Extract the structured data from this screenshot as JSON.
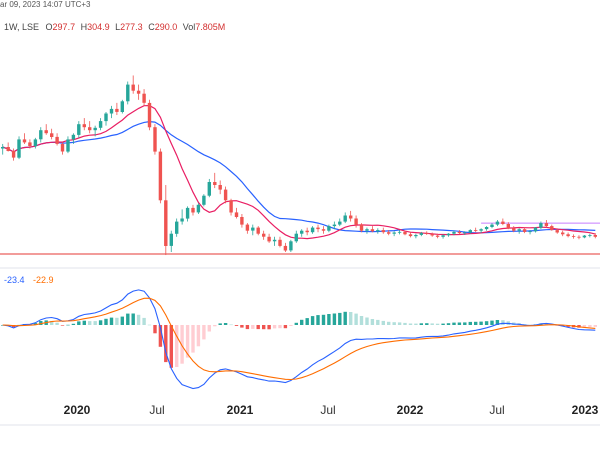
{
  "header": {
    "datetime_fragment": "ar 09, 2023 14:07 UTC+3",
    "interval_exchange": "1W, LSE",
    "ohlc": {
      "open_label": "O",
      "open": "297.7",
      "high_label": "H",
      "high": "304.9",
      "low_label": "L",
      "low": "277.3",
      "close_label": "C",
      "close": "290.0",
      "volume_label": "Vol",
      "volume": "7.805M"
    }
  },
  "macd_header": {
    "macd": "-23.4",
    "signal": "-22.9"
  },
  "colors": {
    "up": "#26a69a",
    "down": "#ef5350",
    "ma_fast": "#e91e63",
    "ma_slow": "#2962ff",
    "macd": "#2962ff",
    "signal": "#ff6d00",
    "hist_up": "#26a69a",
    "hist_up_light": "#b2dfdb",
    "hist_down": "#ef5350",
    "hist_down_light": "#ffcdd2",
    "support": "#e53935",
    "range_line": "#c77dff"
  },
  "chart_data": [
    {
      "type": "candlestick",
      "title": "",
      "x_tick_labels": [
        "2020",
        "Jul",
        "2021",
        "Jul",
        "2022",
        "Jul",
        "2023"
      ],
      "major_ticks": [
        "2020",
        "2021",
        "2022",
        "2023"
      ],
      "ylim": [
        0,
        1000
      ],
      "y_note": "price axis not printed; values in relative units",
      "candles": [
        [
          380,
          395,
          360,
          385
        ],
        [
          385,
          400,
          370,
          372
        ],
        [
          372,
          380,
          340,
          350
        ],
        [
          350,
          420,
          345,
          410
        ],
        [
          410,
          430,
          395,
          400
        ],
        [
          400,
          410,
          380,
          388
        ],
        [
          388,
          415,
          380,
          410
        ],
        [
          410,
          450,
          400,
          440
        ],
        [
          440,
          460,
          425,
          430
        ],
        [
          430,
          445,
          410,
          418
        ],
        [
          418,
          430,
          390,
          395
        ],
        [
          395,
          400,
          360,
          370
        ],
        [
          370,
          420,
          365,
          410
        ],
        [
          410,
          430,
          395,
          425
        ],
        [
          425,
          470,
          415,
          460
        ],
        [
          460,
          480,
          440,
          450
        ],
        [
          450,
          470,
          430,
          440
        ],
        [
          440,
          455,
          420,
          448
        ],
        [
          448,
          480,
          440,
          470
        ],
        [
          470,
          500,
          455,
          495
        ],
        [
          495,
          520,
          480,
          510
        ],
        [
          510,
          530,
          490,
          500
        ],
        [
          500,
          540,
          495,
          535
        ],
        [
          535,
          600,
          525,
          590
        ],
        [
          590,
          620,
          560,
          570
        ],
        [
          570,
          590,
          540,
          560
        ],
        [
          560,
          575,
          520,
          530
        ],
        [
          530,
          540,
          440,
          450
        ],
        [
          450,
          460,
          360,
          370
        ],
        [
          370,
          380,
          200,
          210
        ],
        [
          210,
          260,
          30,
          60
        ],
        [
          60,
          110,
          40,
          100
        ],
        [
          100,
          150,
          90,
          140
        ],
        [
          140,
          180,
          130,
          150
        ],
        [
          150,
          190,
          140,
          185
        ],
        [
          185,
          195,
          160,
          170
        ],
        [
          170,
          200,
          165,
          195
        ],
        [
          195,
          230,
          190,
          225
        ],
        [
          225,
          280,
          220,
          270
        ],
        [
          270,
          300,
          250,
          260
        ],
        [
          260,
          275,
          230,
          245
        ],
        [
          245,
          255,
          200,
          210
        ],
        [
          210,
          215,
          160,
          170
        ],
        [
          170,
          185,
          150,
          155
        ],
        [
          155,
          165,
          120,
          130
        ],
        [
          130,
          135,
          100,
          110
        ],
        [
          110,
          130,
          95,
          120
        ],
        [
          120,
          125,
          95,
          100
        ],
        [
          100,
          110,
          80,
          90
        ],
        [
          90,
          100,
          70,
          75
        ],
        [
          75,
          90,
          60,
          80
        ],
        [
          80,
          90,
          55,
          60
        ],
        [
          60,
          70,
          40,
          45
        ],
        [
          45,
          80,
          40,
          75
        ],
        [
          75,
          110,
          70,
          100
        ],
        [
          100,
          115,
          90,
          110
        ],
        [
          110,
          120,
          95,
          105
        ],
        [
          105,
          125,
          100,
          120
        ],
        [
          120,
          130,
          105,
          115
        ],
        [
          115,
          125,
          100,
          110
        ],
        [
          110,
          130,
          105,
          125
        ],
        [
          125,
          140,
          115,
          130
        ],
        [
          130,
          150,
          125,
          140
        ],
        [
          140,
          170,
          135,
          160
        ],
        [
          160,
          175,
          140,
          150
        ],
        [
          150,
          160,
          120,
          130
        ],
        [
          130,
          135,
          105,
          110
        ],
        [
          110,
          120,
          100,
          115
        ],
        [
          115,
          125,
          105,
          108
        ],
        [
          108,
          118,
          100,
          112
        ],
        [
          112,
          120,
          100,
          105
        ],
        [
          105,
          112,
          95,
          100
        ],
        [
          100,
          108,
          92,
          104
        ],
        [
          104,
          112,
          98,
          106
        ],
        [
          106,
          110,
          95,
          98
        ],
        [
          98,
          105,
          88,
          92
        ],
        [
          92,
          100,
          85,
          96
        ],
        [
          96,
          106,
          92,
          102
        ],
        [
          102,
          108,
          96,
          99
        ],
        [
          99,
          104,
          90,
          94
        ],
        [
          94,
          100,
          85,
          90
        ],
        [
          90,
          98,
          84,
          95
        ],
        [
          95,
          102,
          90,
          100
        ],
        [
          100,
          110,
          95,
          106
        ],
        [
          106,
          112,
          98,
          102
        ],
        [
          102,
          108,
          96,
          104
        ],
        [
          104,
          115,
          100,
          112
        ],
        [
          112,
          120,
          105,
          110
        ],
        [
          110,
          118,
          102,
          115
        ],
        [
          115,
          125,
          110,
          122
        ],
        [
          122,
          135,
          118,
          130
        ],
        [
          130,
          145,
          125,
          140
        ],
        [
          140,
          150,
          128,
          132
        ],
        [
          132,
          138,
          115,
          118
        ],
        [
          118,
          125,
          105,
          110
        ],
        [
          110,
          118,
          100,
          115
        ],
        [
          115,
          120,
          102,
          106
        ],
        [
          106,
          112,
          98,
          108
        ],
        [
          108,
          122,
          104,
          120
        ],
        [
          120,
          140,
          115,
          135
        ],
        [
          135,
          145,
          120,
          125
        ],
        [
          125,
          130,
          110,
          112
        ],
        [
          112,
          118,
          100,
          104
        ],
        [
          104,
          110,
          92,
          98
        ],
        [
          98,
          104,
          88,
          92
        ],
        [
          92,
          98,
          84,
          90
        ],
        [
          90,
          95,
          82,
          88
        ],
        [
          88,
          96,
          85,
          94
        ],
        [
          94,
          100,
          88,
          96
        ],
        [
          96,
          102,
          85,
          90
        ]
      ],
      "ma_fast": [],
      "ma_slow": []
    },
    {
      "type": "macd",
      "series": [
        {
          "name": "-23.4",
          "role": "macd"
        },
        {
          "name": "-22.9",
          "role": "signal"
        }
      ],
      "ylim": [
        -160,
        60
      ]
    }
  ]
}
